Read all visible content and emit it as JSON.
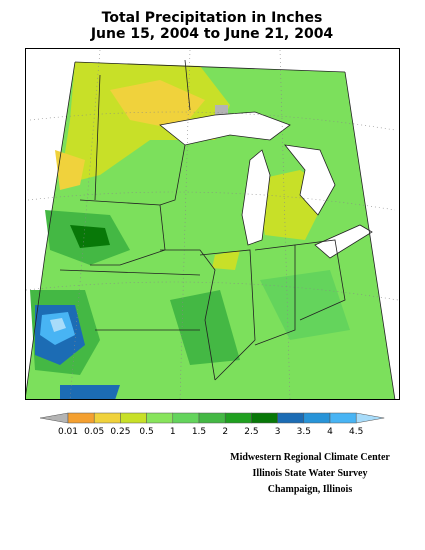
{
  "title": {
    "line1": "Total Precipitation in Inches",
    "line2": "June 15, 2004 to June 21, 2004"
  },
  "legend": {
    "labels": [
      "0.01",
      "0.05",
      "0.25",
      "0.5",
      "1",
      "1.5",
      "2",
      "2.5",
      "3",
      "3.5",
      "4",
      "4.5"
    ],
    "colors": [
      "#b4b4b4",
      "#f4a030",
      "#f0d23c",
      "#c8e028",
      "#88e45c",
      "#64d45c",
      "#44b844",
      "#20a020",
      "#087808",
      "#1c6cb4",
      "#2894d8",
      "#48b4f4",
      "#a8dcfa"
    ]
  },
  "credits": [
    "Midwestern Regional Climate Center",
    "Illinois State Water Survey",
    "Champaign, Illinois"
  ]
}
